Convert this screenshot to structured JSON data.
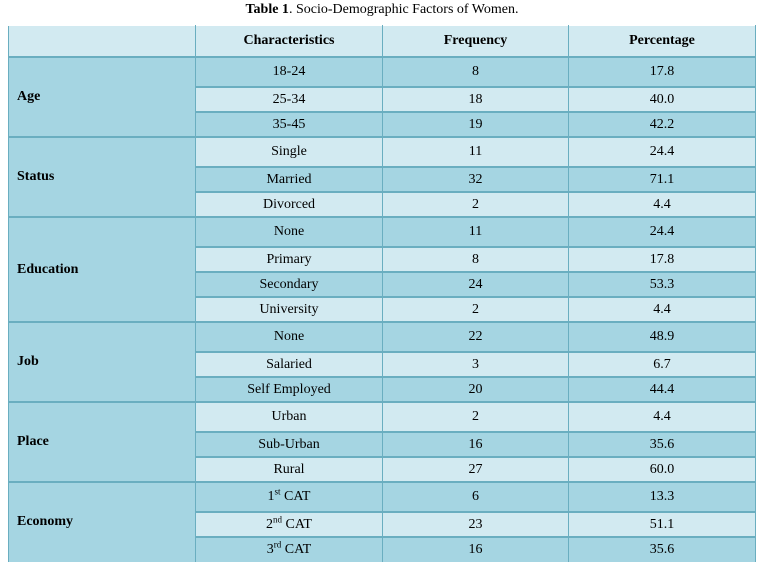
{
  "caption": {
    "label": "Table 1",
    "text": ". Socio-Demographic Factors of Women."
  },
  "headers": [
    "",
    "Characteristics",
    "Frequency",
    "Percentage"
  ],
  "groups": [
    {
      "name": "Age",
      "rows": [
        {
          "ch": "18-24",
          "freq": "8",
          "pct": "17.8"
        },
        {
          "ch": "25-34",
          "freq": "18",
          "pct": "40.0"
        },
        {
          "ch": "35-45",
          "freq": "19",
          "pct": "42.2"
        }
      ]
    },
    {
      "name": "Status",
      "rows": [
        {
          "ch": "Single",
          "freq": "11",
          "pct": "24.4"
        },
        {
          "ch": "Married",
          "freq": "32",
          "pct": "71.1"
        },
        {
          "ch": "Divorced",
          "freq": "2",
          "pct": "4.4"
        }
      ]
    },
    {
      "name": "Education",
      "rows": [
        {
          "ch": "None",
          "freq": "11",
          "pct": "24.4"
        },
        {
          "ch": "Primary",
          "freq": "8",
          "pct": "17.8"
        },
        {
          "ch": "Secondary",
          "freq": "24",
          "pct": "53.3"
        },
        {
          "ch": "University",
          "freq": "2",
          "pct": "4.4"
        }
      ]
    },
    {
      "name": "Job",
      "rows": [
        {
          "ch": "None",
          "freq": "22",
          "pct": "48.9"
        },
        {
          "ch": "Salaried",
          "freq": "3",
          "pct": "6.7"
        },
        {
          "ch": "Self Employed",
          "freq": "20",
          "pct": "44.4"
        }
      ]
    },
    {
      "name": "Place",
      "rows": [
        {
          "ch": "Urban",
          "freq": "2",
          "pct": "4.4"
        },
        {
          "ch": "Sub-Urban",
          "freq": "16",
          "pct": "35.6"
        },
        {
          "ch": "Rural",
          "freq": "27",
          "pct": "60.0"
        }
      ]
    },
    {
      "name": "Economy",
      "rows": [
        {
          "ch": "1",
          "sup": "st",
          "ch_after": " CAT",
          "freq": "6",
          "pct": "13.3"
        },
        {
          "ch": "2",
          "sup": "nd",
          "ch_after": " CAT",
          "freq": "23",
          "pct": "51.1"
        },
        {
          "ch": "3",
          "sup": "rd",
          "ch_after": " CAT",
          "freq": "16",
          "pct": "35.6"
        }
      ]
    }
  ],
  "colors": {
    "light": "#d2eaf1",
    "dark": "#a5d5e2",
    "border": "#6aaec0"
  }
}
